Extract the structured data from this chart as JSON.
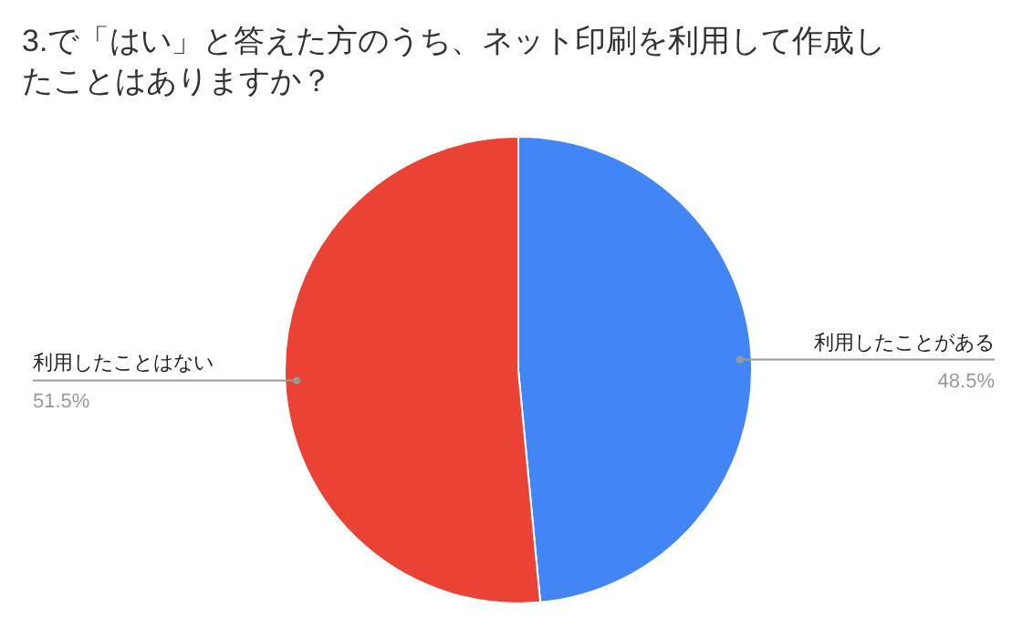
{
  "chart_data": {
    "type": "pie",
    "title": "3.で「はい」と答えた方のうち、ネット印刷を利用して作成したことはありますか？",
    "categories": [
      "利用したことがある",
      "利用したことはない"
    ],
    "values": [
      48.5,
      51.5
    ],
    "colors": [
      "#4285f4",
      "#ea4335"
    ],
    "value_labels": [
      "48.5%",
      "51.5%"
    ]
  }
}
